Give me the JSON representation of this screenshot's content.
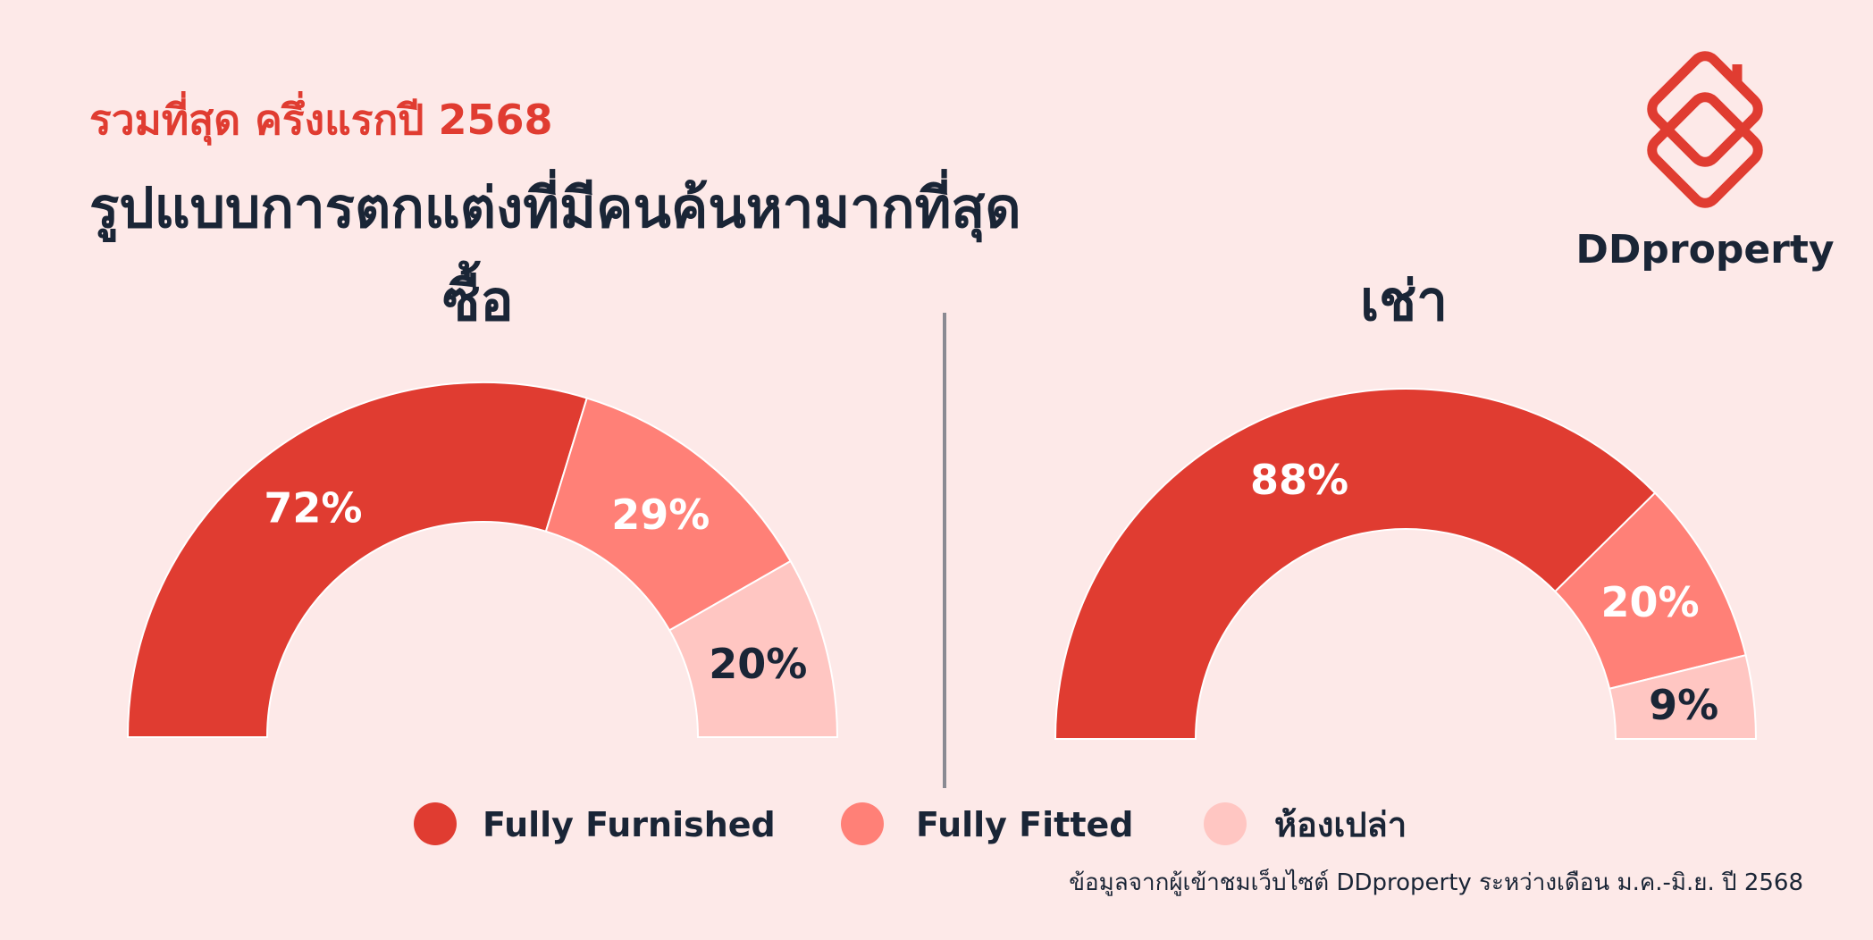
{
  "header": {
    "subtitle": "รวมที่สุด ครึ่งแรกปี 2568",
    "title": "รูปแบบการตกแต่งที่มีคนค้นหามากที่สุด",
    "brand": "DDproperty"
  },
  "chart_data": [
    {
      "type": "half-donut",
      "title": "ซื้อ",
      "categories": [
        "Fully Furnished",
        "Fully Fitted",
        "ห้องเปล่า"
      ],
      "values": [
        72,
        29,
        20
      ],
      "value_labels": [
        "72%",
        "29%",
        "20%"
      ],
      "colors": [
        "#e03c31",
        "#ff8077",
        "#ffc6c2"
      ],
      "value_label_colors": [
        "#ffffff",
        "#ffffff",
        "#1a2536"
      ]
    },
    {
      "type": "half-donut",
      "title": "เช่า",
      "categories": [
        "Fully Furnished",
        "Fully Fitted",
        "ห้องเปล่า"
      ],
      "values": [
        88,
        20,
        9
      ],
      "value_labels": [
        "88%",
        "20%",
        "9%"
      ],
      "colors": [
        "#e03c31",
        "#ff8077",
        "#ffc6c2"
      ],
      "value_label_colors": [
        "#ffffff",
        "#ffffff",
        "#1a2536"
      ]
    }
  ],
  "source": "ข้อมูลจากผู้เข้าชมเว็บไซต์ DDproperty ระหว่างเดือน ม.ค.-มิ.ย. ปี 2568"
}
